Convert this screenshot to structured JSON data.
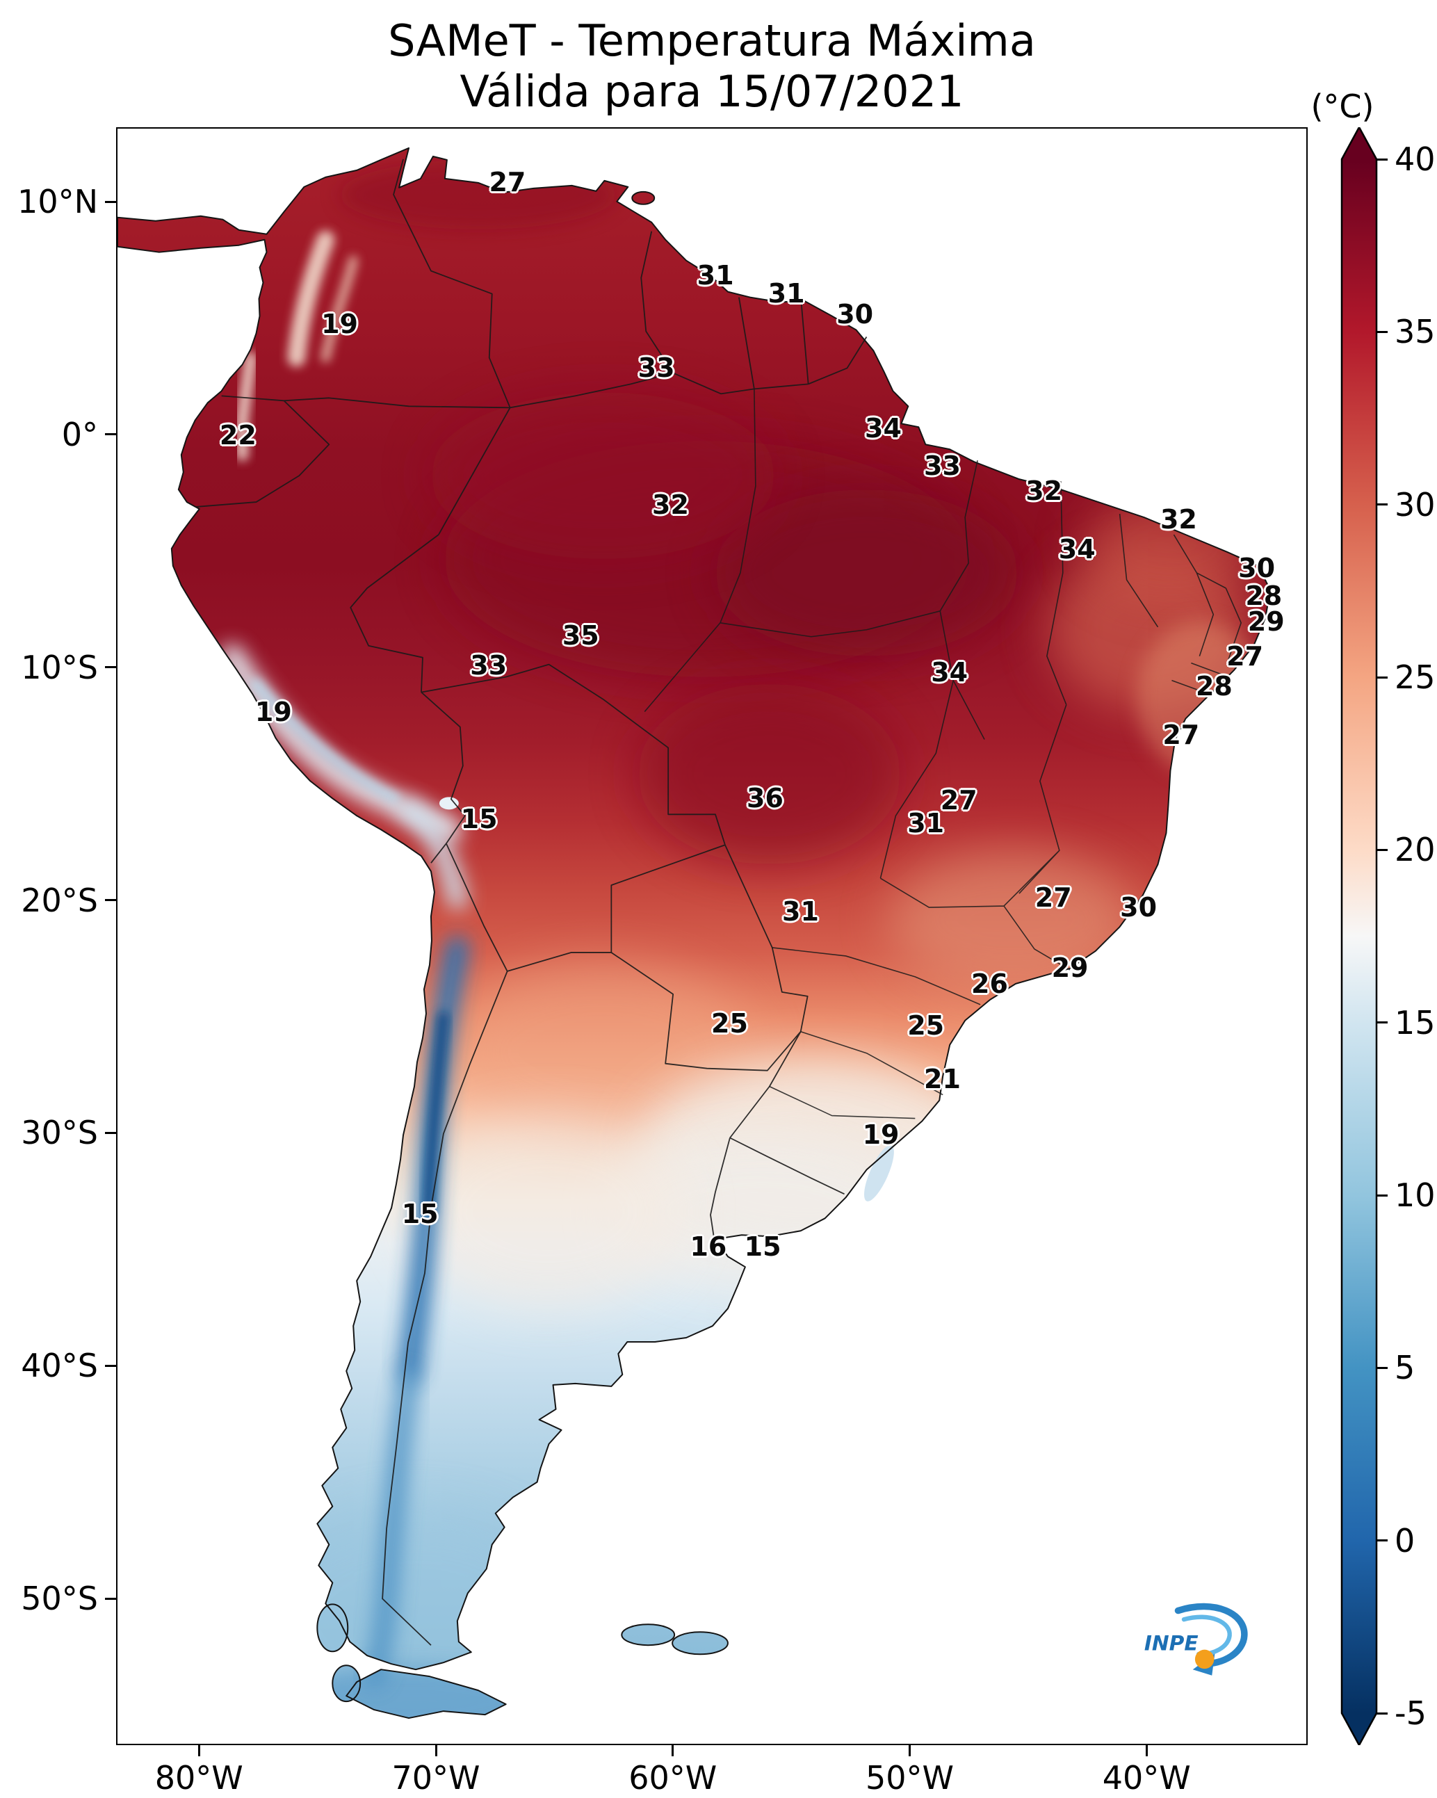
{
  "title": {
    "line1": "SAMeT - Temperatura Máxima",
    "line2": "Válida para 15/07/2021"
  },
  "colorbar": {
    "unit_label": "(°C)",
    "vmin": -5,
    "vmax": 40,
    "ticks": [
      {
        "label": "40",
        "value": 40
      },
      {
        "label": "35",
        "value": 35
      },
      {
        "label": "30",
        "value": 30
      },
      {
        "label": "25",
        "value": 25
      },
      {
        "label": "20",
        "value": 20
      },
      {
        "label": "15",
        "value": 15
      },
      {
        "label": "10",
        "value": 10
      },
      {
        "label": "5",
        "value": 5
      },
      {
        "label": "0",
        "value": 0
      },
      {
        "label": "-5",
        "value": -5
      }
    ]
  },
  "axes": {
    "lat_ticks": [
      {
        "label": "10°N",
        "value": 10
      },
      {
        "label": "0°",
        "value": 0
      },
      {
        "label": "10°S",
        "value": -10
      },
      {
        "label": "20°S",
        "value": -20
      },
      {
        "label": "30°S",
        "value": -30
      },
      {
        "label": "40°S",
        "value": -40
      },
      {
        "label": "50°S",
        "value": -50
      }
    ],
    "lon_ticks": [
      {
        "label": "80°W",
        "value": -80
      },
      {
        "label": "70°W",
        "value": -70
      },
      {
        "label": "60°W",
        "value": -60
      },
      {
        "label": "50°W",
        "value": -50
      },
      {
        "label": "40°W",
        "value": -40
      }
    ]
  },
  "logo": {
    "label": "INPE"
  },
  "chart_data": {
    "type": "heatmap",
    "title": "SAMeT - Temperatura Máxima",
    "valid_date": "15/07/2021",
    "unit": "°C",
    "lon_range": [
      -83.5,
      -33.2
    ],
    "lat_range": [
      -56.3,
      13.2
    ],
    "colorbar_range": [
      -5,
      40
    ],
    "colormap": {
      "name": "RdBu_r",
      "over": "#67001f",
      "under": "#053061",
      "stops": [
        {
          "value": 40,
          "color": "#67001f"
        },
        {
          "value": 35,
          "color": "#b2182b"
        },
        {
          "value": 30,
          "color": "#d6604d"
        },
        {
          "value": 25,
          "color": "#f4a582"
        },
        {
          "value": 20,
          "color": "#fddbc7"
        },
        {
          "value": 17.5,
          "color": "#f7f7f7"
        },
        {
          "value": 15,
          "color": "#d1e5f0"
        },
        {
          "value": 10,
          "color": "#92c5de"
        },
        {
          "value": 5,
          "color": "#4393c3"
        },
        {
          "value": 0,
          "color": "#2166ac"
        },
        {
          "value": -5,
          "color": "#053061"
        }
      ]
    },
    "stations": [
      {
        "value": 27,
        "lon": -67.0,
        "lat": 10.9
      },
      {
        "value": 19,
        "lon": -74.1,
        "lat": 4.8
      },
      {
        "value": 31,
        "lon": -58.2,
        "lat": 6.9
      },
      {
        "value": 31,
        "lon": -55.2,
        "lat": 6.1
      },
      {
        "value": 30,
        "lon": -52.3,
        "lat": 5.2
      },
      {
        "value": 33,
        "lon": -60.7,
        "lat": 2.9
      },
      {
        "value": 22,
        "lon": -78.4,
        "lat": 0.0
      },
      {
        "value": 34,
        "lon": -51.1,
        "lat": 0.3
      },
      {
        "value": 33,
        "lon": -48.6,
        "lat": -1.3
      },
      {
        "value": 32,
        "lon": -60.1,
        "lat": -3.0
      },
      {
        "value": 32,
        "lon": -44.3,
        "lat": -2.4
      },
      {
        "value": 32,
        "lon": -38.6,
        "lat": -3.6
      },
      {
        "value": 34,
        "lon": -42.9,
        "lat": -4.9
      },
      {
        "value": 30,
        "lon": -35.3,
        "lat": -5.7
      },
      {
        "value": 28,
        "lon": -35.0,
        "lat": -6.9
      },
      {
        "value": 29,
        "lon": -34.9,
        "lat": -8.0
      },
      {
        "value": 35,
        "lon": -63.9,
        "lat": -8.6
      },
      {
        "value": 27,
        "lon": -35.8,
        "lat": -9.5
      },
      {
        "value": 33,
        "lon": -67.8,
        "lat": -9.9
      },
      {
        "value": 34,
        "lon": -48.3,
        "lat": -10.2
      },
      {
        "value": 28,
        "lon": -37.1,
        "lat": -10.8
      },
      {
        "value": 19,
        "lon": -76.9,
        "lat": -11.9
      },
      {
        "value": 27,
        "lon": -38.5,
        "lat": -12.9
      },
      {
        "value": 15,
        "lon": -68.2,
        "lat": -16.5
      },
      {
        "value": 36,
        "lon": -56.1,
        "lat": -15.6
      },
      {
        "value": 27,
        "lon": -47.9,
        "lat": -15.7
      },
      {
        "value": 31,
        "lon": -49.3,
        "lat": -16.7
      },
      {
        "value": 27,
        "lon": -43.9,
        "lat": -19.9
      },
      {
        "value": 30,
        "lon": -40.3,
        "lat": -20.3
      },
      {
        "value": 31,
        "lon": -54.6,
        "lat": -20.5
      },
      {
        "value": 29,
        "lon": -43.2,
        "lat": -22.9
      },
      {
        "value": 26,
        "lon": -46.6,
        "lat": -23.6
      },
      {
        "value": 25,
        "lon": -57.6,
        "lat": -25.3
      },
      {
        "value": 25,
        "lon": -49.3,
        "lat": -25.4
      },
      {
        "value": 21,
        "lon": -48.6,
        "lat": -27.7
      },
      {
        "value": 19,
        "lon": -51.2,
        "lat": -30.1
      },
      {
        "value": 15,
        "lon": -70.7,
        "lat": -33.5
      },
      {
        "value": 16,
        "lon": -58.5,
        "lat": -34.9
      },
      {
        "value": 15,
        "lon": -56.2,
        "lat": -34.9
      }
    ]
  }
}
